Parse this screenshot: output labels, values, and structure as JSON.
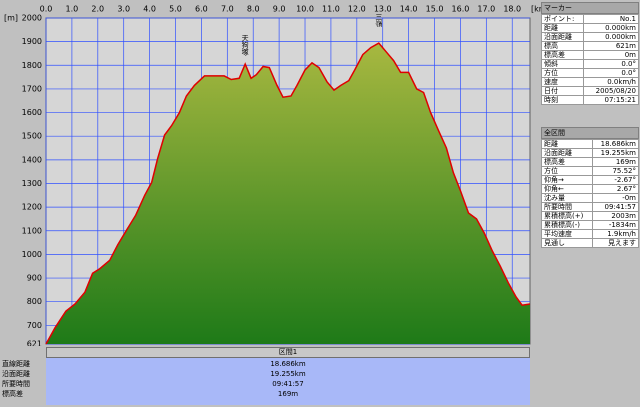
{
  "chart_data": {
    "type": "area",
    "x": [
      0,
      0.35,
      0.77,
      1.12,
      1.5,
      1.8,
      2.08,
      2.46,
      2.77,
      3.15,
      3.46,
      3.81,
      4.08,
      4.31,
      4.58,
      4.85,
      5.15,
      5.42,
      5.73,
      6.12,
      6.5,
      6.88,
      7.15,
      7.46,
      7.69,
      7.92,
      8.12,
      8.38,
      8.62,
      8.92,
      9.15,
      9.46,
      9.69,
      10.0,
      10.27,
      10.54,
      10.85,
      11.12,
      11.38,
      11.69,
      11.92,
      12.23,
      12.54,
      12.85,
      13.15,
      13.42,
      13.69,
      14.0,
      14.31,
      14.58,
      14.85,
      15.15,
      15.46,
      15.73,
      16.0,
      16.31,
      16.62,
      16.92,
      17.23,
      17.54,
      17.85,
      18.15,
      18.38,
      18.686
    ],
    "values": [
      621,
      690,
      760,
      790,
      840,
      920,
      940,
      975,
      1040,
      1110,
      1165,
      1250,
      1305,
      1405,
      1505,
      1545,
      1600,
      1670,
      1715,
      1755,
      1755,
      1755,
      1740,
      1745,
      1805,
      1745,
      1760,
      1795,
      1790,
      1715,
      1665,
      1670,
      1715,
      1780,
      1810,
      1790,
      1730,
      1695,
      1715,
      1735,
      1780,
      1845,
      1875,
      1894,
      1855,
      1820,
      1770,
      1770,
      1700,
      1685,
      1600,
      1525,
      1450,
      1345,
      1270,
      1175,
      1150,
      1090,
      1015,
      950,
      880,
      820,
      785,
      790
    ],
    "color": "#e00000",
    "xlim": [
      0,
      18.686
    ],
    "ylim": [
      621,
      2000
    ],
    "x_unit": "[km]",
    "y_unit": "[m]",
    "xticks": [
      {
        "value": 0,
        "label": "0.0"
      },
      {
        "value": 1,
        "label": "1.0"
      },
      {
        "value": 2,
        "label": "2.0"
      },
      {
        "value": 3,
        "label": "3.0"
      },
      {
        "value": 4,
        "label": "4.0"
      },
      {
        "value": 5,
        "label": "5.0"
      },
      {
        "value": 6,
        "label": "6.0"
      },
      {
        "value": 7,
        "label": "7.0"
      },
      {
        "value": 8,
        "label": "8.0"
      },
      {
        "value": 9,
        "label": "9.0"
      },
      {
        "value": 10,
        "label": "10.0"
      },
      {
        "value": 11,
        "label": "11.0"
      },
      {
        "value": 12,
        "label": "12.0"
      },
      {
        "value": 13,
        "label": "13.0"
      },
      {
        "value": 14,
        "label": "14.0"
      },
      {
        "value": 15,
        "label": "15.0"
      },
      {
        "value": 16,
        "label": "16.0"
      },
      {
        "value": 17,
        "label": "17.0"
      },
      {
        "value": 18,
        "label": "18.0"
      }
    ],
    "yticks": [
      621,
      700,
      800,
      900,
      1000,
      1100,
      1200,
      1300,
      1400,
      1500,
      1600,
      1700,
      1800,
      1900,
      2000
    ],
    "grid": true,
    "annotations": [
      {
        "text": "天狗塚",
        "x": 7.69,
        "y": 1805
      },
      {
        "text": "三嶺",
        "x": 12.85,
        "y": 1894
      }
    ]
  },
  "marker_panel": {
    "title": "マーカー",
    "rows": [
      {
        "label": "ポイント:",
        "value": "No.1"
      },
      {
        "label": "距離",
        "value": "0.000km"
      },
      {
        "label": "沿面距離",
        "value": "0.000km"
      },
      {
        "label": "標高",
        "value": "621m"
      },
      {
        "label": "標高差",
        "value": "0m"
      },
      {
        "label": "傾斜",
        "value": "0.0°"
      },
      {
        "label": "方位",
        "value": "0.0°"
      },
      {
        "label": "速度",
        "value": "0.0km/h"
      },
      {
        "label": "日付",
        "value": "2005/08/20"
      },
      {
        "label": "時刻",
        "value": "07:15:21"
      }
    ]
  },
  "total_panel": {
    "title": "全区間",
    "rows": [
      {
        "label": "距離",
        "value": "18.686km"
      },
      {
        "label": "沿面距離",
        "value": "19.255km"
      },
      {
        "label": "標高差",
        "value": "169m"
      },
      {
        "label": "方位",
        "value": "75.52°"
      },
      {
        "label": "仰角→",
        "value": "-2.67°"
      },
      {
        "label": "仰角←",
        "value": "2.67°"
      },
      {
        "label": "沈み量",
        "value": "-0m"
      },
      {
        "label": "所要時間",
        "value": "09:41:57"
      },
      {
        "label": "累積標高(+)",
        "value": "2003m"
      },
      {
        "label": "累積標高(-)",
        "value": "-1834m"
      },
      {
        "label": "平均速度",
        "value": "1.9km/h"
      },
      {
        "label": "見通し",
        "value": "見えます"
      }
    ]
  },
  "section": {
    "title": "区間1",
    "rows": [
      {
        "label": "直線距離",
        "value": "18.686km"
      },
      {
        "label": "沿面距離",
        "value": "19.255km"
      },
      {
        "label": "所要時間",
        "value": "09:41:57"
      },
      {
        "label": "標高差",
        "value": "169m"
      }
    ]
  }
}
